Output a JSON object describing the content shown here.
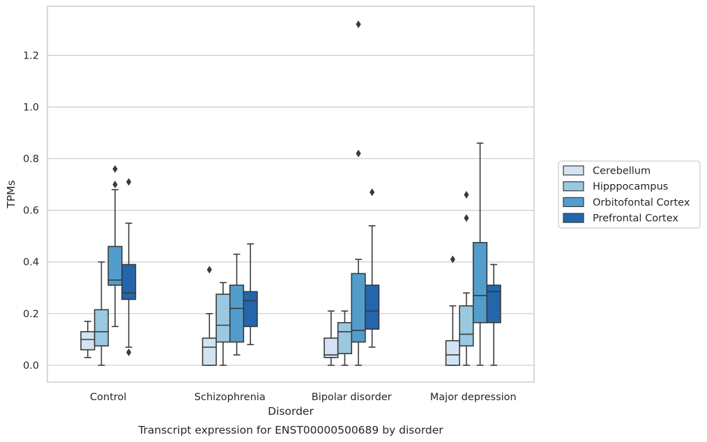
{
  "chart_data": {
    "type": "box",
    "title": "",
    "caption": "Transcript expression for ENST00000500689 by disorder",
    "xlabel": "Disorder",
    "ylabel": "TPMs",
    "ylim": [
      -0.065,
      1.39
    ],
    "yticks": [
      0.0,
      0.2,
      0.4,
      0.6,
      0.8,
      1.0,
      1.2
    ],
    "ytick_labels": [
      "0.0",
      "0.2",
      "0.4",
      "0.6",
      "0.8",
      "1.0",
      "1.2"
    ],
    "grid": "horizontal",
    "legend_position": "right",
    "categories": [
      "Control",
      "Schizophrenia",
      "Bipolar disorder",
      "Major depression"
    ],
    "series": [
      {
        "name": "Cerebellum",
        "color": "#d3e3f3",
        "boxes": [
          {
            "whislo": 0.03,
            "q1": 0.06,
            "med": 0.1,
            "q3": 0.13,
            "whishi": 0.17,
            "fliers": []
          },
          {
            "whislo": 0.0,
            "q1": 0.0,
            "med": 0.07,
            "q3": 0.105,
            "whishi": 0.2,
            "fliers": [
              0.37
            ]
          },
          {
            "whislo": 0.0,
            "q1": 0.03,
            "med": 0.04,
            "q3": 0.105,
            "whishi": 0.21,
            "fliers": []
          },
          {
            "whislo": 0.0,
            "q1": 0.0,
            "med": 0.04,
            "q3": 0.095,
            "whishi": 0.23,
            "fliers": [
              0.41
            ]
          }
        ]
      },
      {
        "name": "Hipppocampus",
        "color": "#9ac8e0",
        "boxes": [
          {
            "whislo": 0.0,
            "q1": 0.075,
            "med": 0.13,
            "q3": 0.215,
            "whishi": 0.4,
            "fliers": []
          },
          {
            "whislo": 0.0,
            "q1": 0.09,
            "med": 0.155,
            "q3": 0.275,
            "whishi": 0.32,
            "fliers": []
          },
          {
            "whislo": 0.0,
            "q1": 0.045,
            "med": 0.13,
            "q3": 0.165,
            "whishi": 0.21,
            "fliers": []
          },
          {
            "whislo": 0.0,
            "q1": 0.075,
            "med": 0.12,
            "q3": 0.23,
            "whishi": 0.28,
            "fliers": [
              0.57,
              0.66
            ]
          }
        ]
      },
      {
        "name": "Orbitofontal Cortex",
        "color": "#529dcc",
        "boxes": [
          {
            "whislo": 0.15,
            "q1": 0.31,
            "med": 0.33,
            "q3": 0.46,
            "whishi": 0.68,
            "fliers": [
              0.7,
              0.76
            ]
          },
          {
            "whislo": 0.04,
            "q1": 0.09,
            "med": 0.22,
            "q3": 0.31,
            "whishi": 0.43,
            "fliers": []
          },
          {
            "whislo": 0.0,
            "q1": 0.09,
            "med": 0.135,
            "q3": 0.355,
            "whishi": 0.41,
            "fliers": [
              0.82,
              1.32
            ]
          },
          {
            "whislo": 0.0,
            "q1": 0.165,
            "med": 0.27,
            "q3": 0.475,
            "whishi": 0.86,
            "fliers": []
          }
        ]
      },
      {
        "name": "Prefrontal Cortex",
        "color": "#2366ab",
        "boxes": [
          {
            "whislo": 0.07,
            "q1": 0.255,
            "med": 0.28,
            "q3": 0.39,
            "whishi": 0.55,
            "fliers": [
              0.05,
              0.71
            ]
          },
          {
            "whislo": 0.08,
            "q1": 0.15,
            "med": 0.25,
            "q3": 0.285,
            "whishi": 0.47,
            "fliers": []
          },
          {
            "whislo": 0.07,
            "q1": 0.14,
            "med": 0.21,
            "q3": 0.31,
            "whishi": 0.54,
            "fliers": [
              0.67
            ]
          },
          {
            "whislo": 0.0,
            "q1": 0.165,
            "med": 0.285,
            "q3": 0.31,
            "whishi": 0.39,
            "fliers": []
          }
        ]
      }
    ]
  }
}
